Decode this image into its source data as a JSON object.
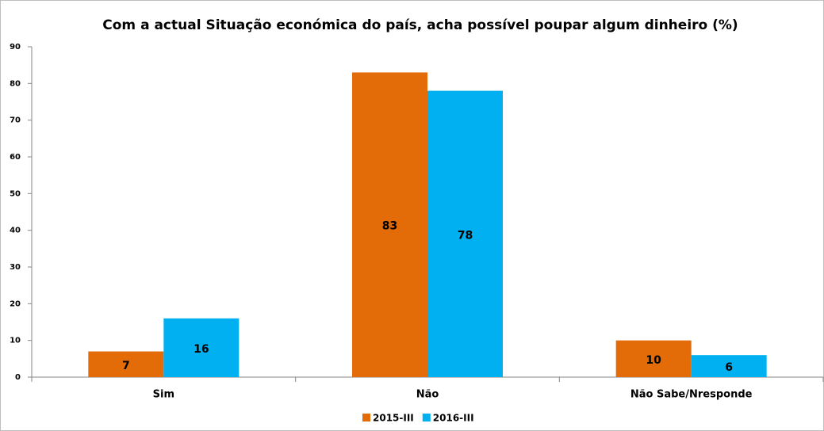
{
  "chart_data": {
    "type": "bar",
    "title": "Com a actual Situação económica do país, acha possível poupar algum dinheiro (%)",
    "categories": [
      "Sim",
      "Não",
      "Não Sabe/Nresponde"
    ],
    "series": [
      {
        "name": "2015-III",
        "color": "#e36c09",
        "values": [
          7,
          83,
          10
        ]
      },
      {
        "name": "2016-III",
        "color": "#00b0f0",
        "values": [
          16,
          78,
          6
        ]
      }
    ],
    "ylim": [
      0,
      90
    ],
    "yticks": [
      0,
      10,
      20,
      30,
      40,
      50,
      60,
      70,
      80,
      90
    ],
    "grid": false,
    "legend": "bottom"
  }
}
